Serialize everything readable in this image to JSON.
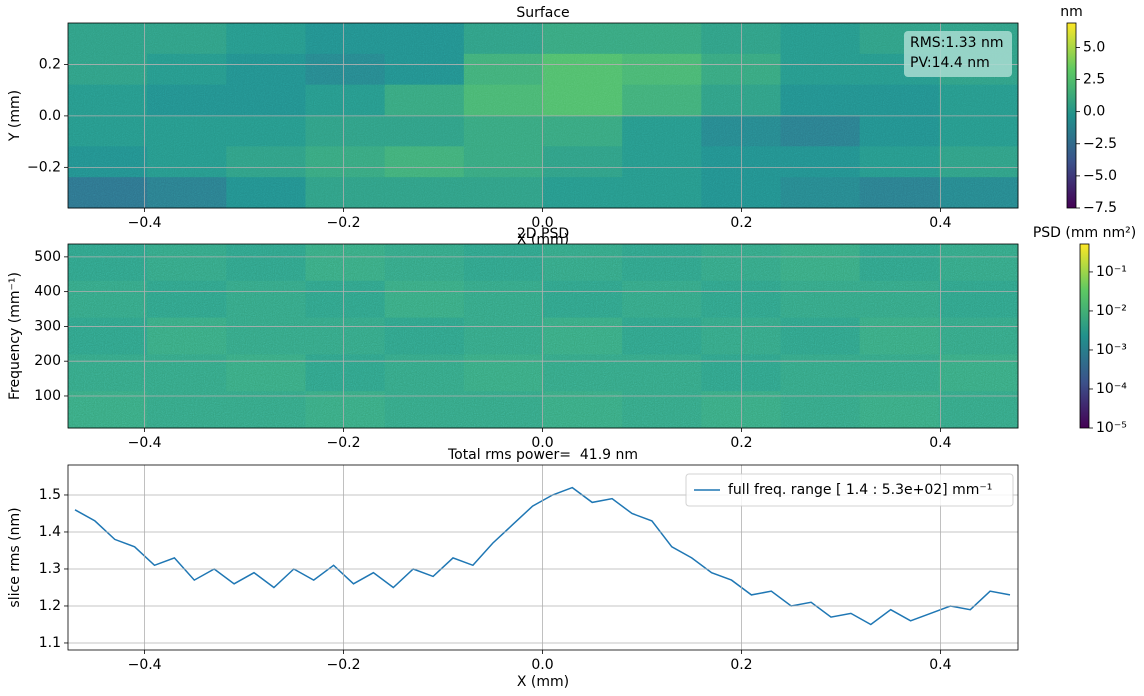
{
  "chart_data": [
    {
      "type": "heatmap",
      "title": "Surface",
      "xlabel": "X (mm)",
      "ylabel": "Y (mm)",
      "xlim": [
        -0.477,
        0.478
      ],
      "ylim": [
        -0.358,
        0.361
      ],
      "xticks": [
        {
          "value": -0.4,
          "label": "−0.4"
        },
        {
          "value": -0.2,
          "label": "−0.2"
        },
        {
          "value": 0,
          "label": "0.0"
        },
        0.2,
        0.4
      ],
      "yticks": [
        {
          "value": -0.2,
          "label": "−0.2"
        },
        {
          "value": 0,
          "label": "0.0"
        },
        0.2
      ],
      "grid": true,
      "z": [
        [
          0.5,
          0.5,
          0.0,
          -0.5,
          -0.5,
          0.5,
          1.0,
          1.0,
          0.5,
          0.0,
          0.5,
          0.5
        ],
        [
          0.5,
          0.0,
          -0.5,
          -1.0,
          -0.5,
          1.5,
          2.5,
          2.0,
          1.0,
          0.0,
          0.0,
          0.5
        ],
        [
          0.0,
          -0.5,
          -0.5,
          0.0,
          1.0,
          2.0,
          2.5,
          1.5,
          0.5,
          -0.5,
          -0.5,
          0.0
        ],
        [
          0.0,
          0.0,
          0.0,
          0.5,
          0.5,
          1.0,
          1.0,
          0.0,
          -1.0,
          -1.5,
          -0.5,
          0.0
        ],
        [
          -0.5,
          0.0,
          0.5,
          1.0,
          1.5,
          1.0,
          0.5,
          0.0,
          -0.5,
          -0.5,
          0.0,
          0.5
        ],
        [
          -2.0,
          -1.5,
          -0.5,
          0.5,
          0.5,
          0.5,
          0.0,
          0.0,
          -0.5,
          -1.0,
          -1.5,
          -1.0
        ]
      ],
      "colorbar": {
        "label": "nm",
        "colormap": "viridis",
        "log": false,
        "lim": [
          -7.5,
          6.9
        ],
        "ticks": [
          {
            "value": -7.5,
            "label": "−7.5"
          },
          {
            "value": -5,
            "label": "−5.0"
          },
          {
            "value": -2.5,
            "label": "−2.5"
          },
          {
            "value": 0,
            "label": "0.0"
          },
          2.5,
          {
            "value": 5,
            "label": "5.0"
          }
        ]
      },
      "annotations": [
        "RMS:1.33 nm",
        "PV:14.4 nm"
      ]
    },
    {
      "type": "heatmap",
      "title": "2D PSD",
      "ylabel": "Frequency (mm⁻¹)",
      "xlim": [
        -0.477,
        0.478
      ],
      "ylim": [
        7.9,
        537
      ],
      "xticks": [
        {
          "value": -0.4,
          "label": "−0.4"
        },
        {
          "value": -0.2,
          "label": "−0.2"
        },
        {
          "value": 0,
          "label": "0.0"
        },
        0.2,
        0.4
      ],
      "yticks": [
        100,
        200,
        300,
        400,
        500
      ],
      "grid": true,
      "z": [
        [
          0.004,
          0.005,
          0.004,
          0.006,
          0.005,
          0.004,
          0.005,
          0.004,
          0.005,
          0.006,
          0.004,
          0.005
        ],
        [
          0.005,
          0.004,
          0.005,
          0.004,
          0.006,
          0.005,
          0.004,
          0.005,
          0.004,
          0.005,
          0.005,
          0.004
        ],
        [
          0.004,
          0.006,
          0.005,
          0.005,
          0.004,
          0.005,
          0.006,
          0.004,
          0.005,
          0.004,
          0.006,
          0.005
        ],
        [
          0.005,
          0.005,
          0.006,
          0.004,
          0.005,
          0.006,
          0.005,
          0.005,
          0.004,
          0.005,
          0.005,
          0.006
        ],
        [
          0.006,
          0.005,
          0.005,
          0.006,
          0.005,
          0.005,
          0.006,
          0.005,
          0.006,
          0.005,
          0.006,
          0.005
        ]
      ],
      "colorbar": {
        "label": "PSD (mm nm²)",
        "colormap": "viridis",
        "log": true,
        "lim": [
          1e-05,
          0.52
        ],
        "ticks": [
          {
            "value": 1e-05,
            "label": "10⁻⁵"
          },
          {
            "value": 0.0001,
            "label": "10⁻⁴"
          },
          {
            "value": 0.001,
            "label": "10⁻³"
          },
          {
            "value": 0.01,
            "label": "10⁻²"
          },
          {
            "value": 0.1,
            "label": "10⁻¹"
          }
        ]
      }
    },
    {
      "type": "line",
      "title": "Total rms power=  41.9 nm",
      "xlabel": "X (mm)",
      "ylabel": "slice rms (nm)",
      "xlim": [
        -0.477,
        0.478
      ],
      "ylim": [
        1.081,
        1.581
      ],
      "xticks": [
        {
          "value": -0.4,
          "label": "−0.4"
        },
        {
          "value": -0.2,
          "label": "−0.2"
        },
        {
          "value": 0,
          "label": "0.0"
        },
        0.2,
        0.4
      ],
      "yticks": [
        1.1,
        1.2,
        1.3,
        1.4,
        1.5
      ],
      "grid": true,
      "legend": "upper right",
      "x": [
        -0.47,
        -0.45,
        -0.43,
        -0.41,
        -0.39,
        -0.37,
        -0.35,
        -0.33,
        -0.31,
        -0.29,
        -0.27,
        -0.25,
        -0.23,
        -0.21,
        -0.19,
        -0.17,
        -0.15,
        -0.13,
        -0.11,
        -0.09,
        -0.07,
        -0.05,
        -0.03,
        -0.01,
        0.01,
        0.03,
        0.05,
        0.07,
        0.09,
        0.11,
        0.13,
        0.15,
        0.17,
        0.19,
        0.21,
        0.23,
        0.25,
        0.27,
        0.29,
        0.31,
        0.33,
        0.35,
        0.37,
        0.39,
        0.41,
        0.43,
        0.45,
        0.47
      ],
      "series": [
        {
          "name": "full freq. range [ 1.4 : 5.3e+02] mm⁻¹",
          "color": "#1f77b4",
          "values": [
            1.46,
            1.43,
            1.38,
            1.36,
            1.31,
            1.33,
            1.27,
            1.3,
            1.26,
            1.29,
            1.25,
            1.3,
            1.27,
            1.31,
            1.26,
            1.29,
            1.25,
            1.3,
            1.28,
            1.33,
            1.31,
            1.37,
            1.42,
            1.47,
            1.5,
            1.52,
            1.48,
            1.49,
            1.45,
            1.43,
            1.36,
            1.33,
            1.29,
            1.27,
            1.23,
            1.24,
            1.2,
            1.21,
            1.17,
            1.18,
            1.15,
            1.19,
            1.16,
            1.18,
            1.2,
            1.19,
            1.24,
            1.23
          ]
        }
      ]
    }
  ]
}
